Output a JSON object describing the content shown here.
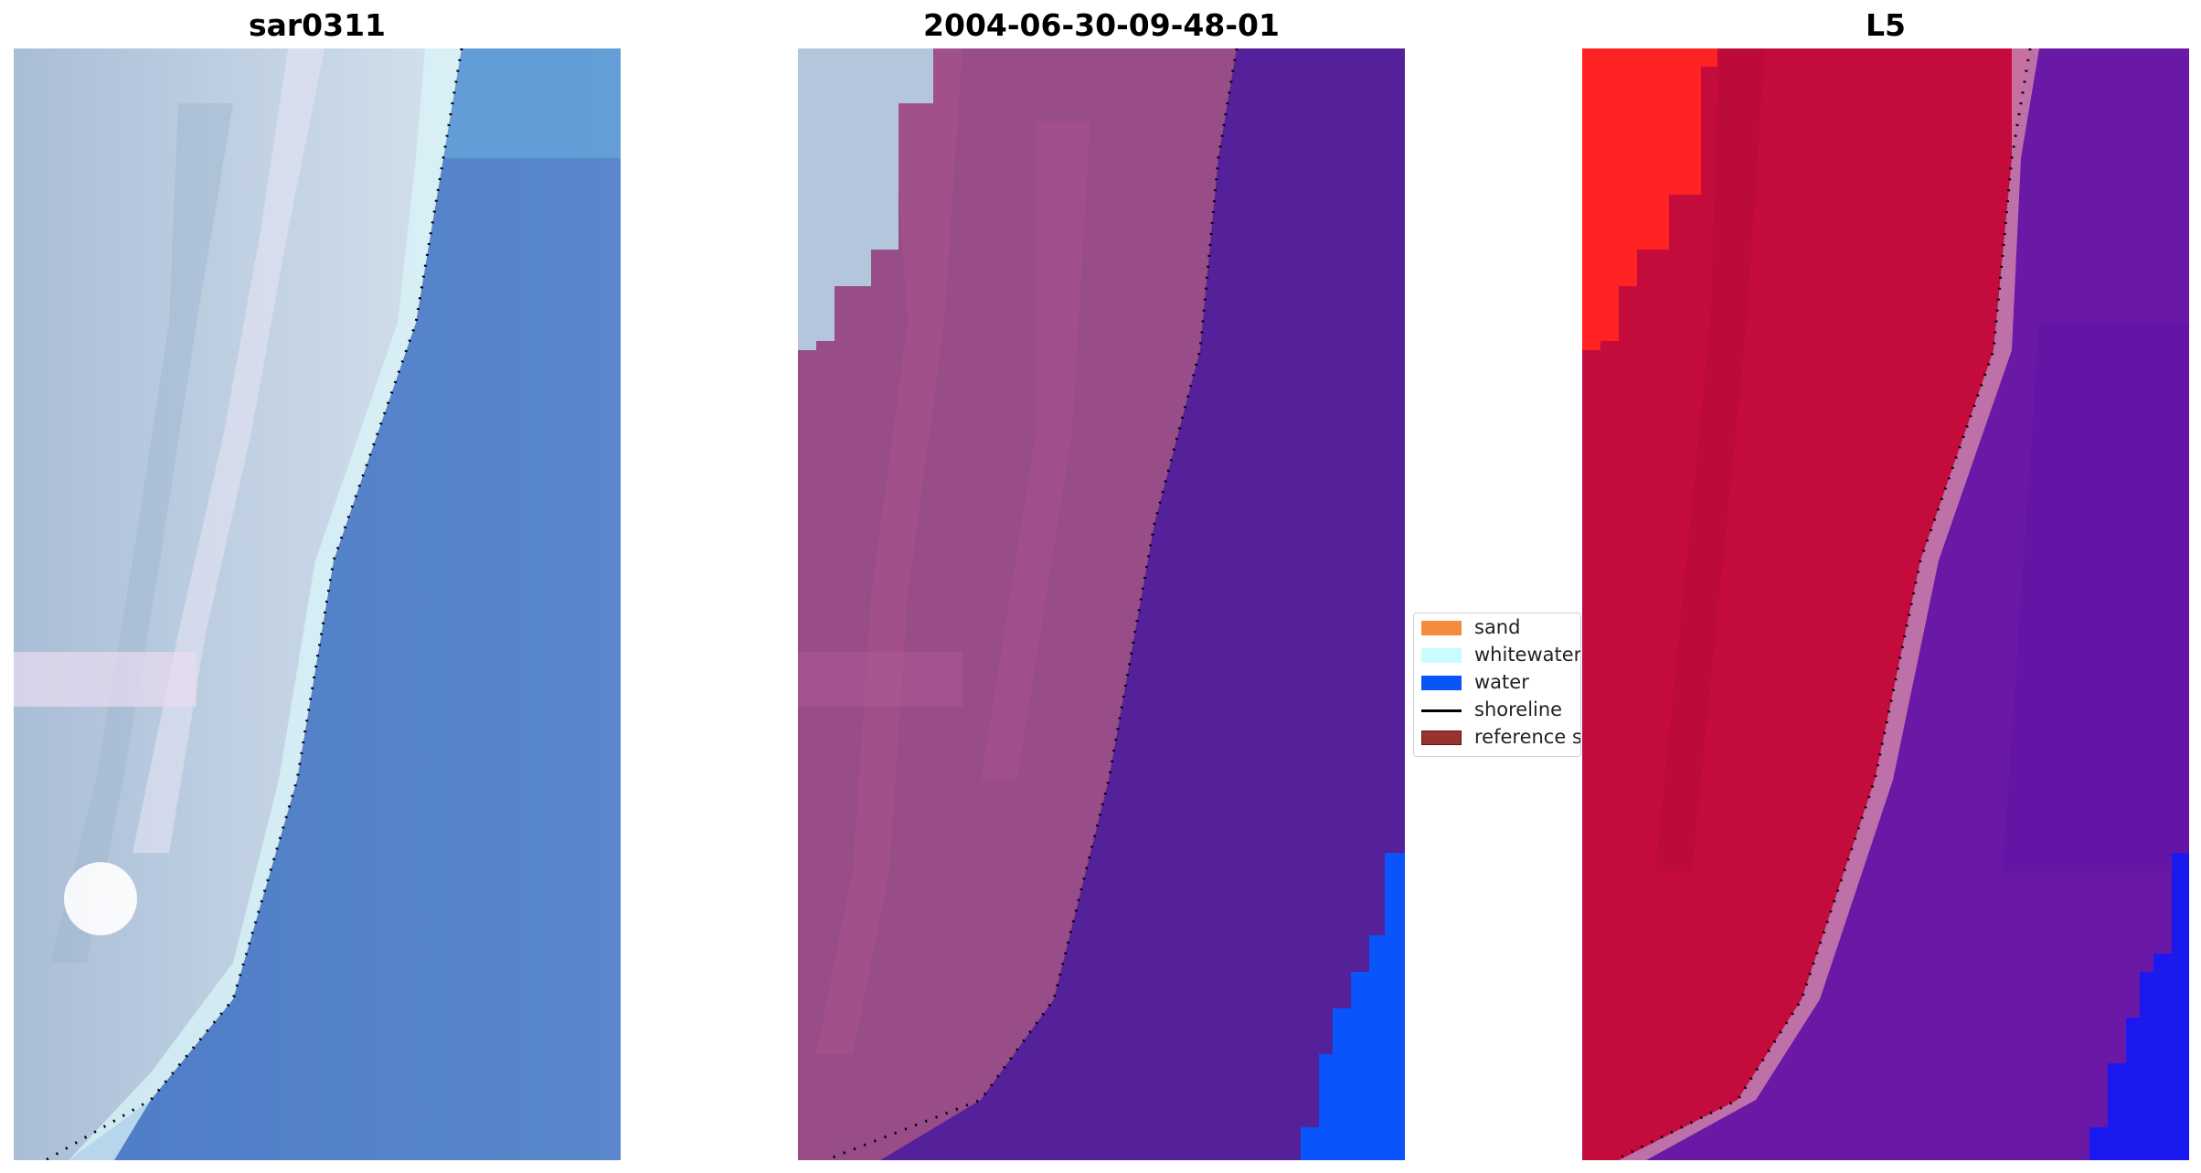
{
  "panels": [
    {
      "title": "sar0311"
    },
    {
      "title": "2004-06-30-09-48-01"
    },
    {
      "title": "L5"
    }
  ],
  "legend": {
    "items": [
      {
        "label": "sand",
        "color": "#f58c3d",
        "kind": "patch"
      },
      {
        "label": "whitewater",
        "color": "#c9fcfc",
        "kind": "patch"
      },
      {
        "label": "water",
        "color": "#0a55f5",
        "kind": "patch"
      },
      {
        "label": "shoreline",
        "color": "#000000",
        "kind": "line"
      },
      {
        "label": "reference s",
        "color": "#9a3232",
        "kind": "patch"
      }
    ]
  },
  "colors": {
    "rgb_land": "#b3c3d6",
    "rgb_sea": "#5783c8",
    "class_land": "#b3c6dc",
    "class_sand_overlay": "#984c88",
    "class_water_overlay": "#54219a",
    "class_bright_water": "#0a55fb",
    "index_land": "#c40c3c",
    "index_bright": "#ff2222",
    "index_water": "#6a18a6",
    "index_deep": "#1a1af0"
  }
}
